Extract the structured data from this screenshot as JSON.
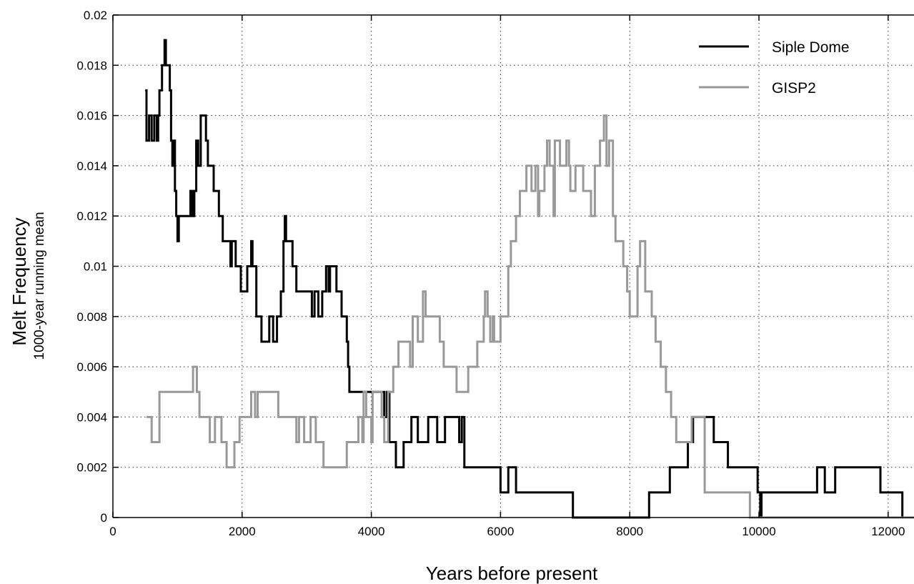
{
  "chart_data": {
    "type": "line",
    "xlabel": "Years before present",
    "ylabel": "Melt Frequency",
    "ylabel_sub": "1000-year running mean",
    "xlim": [
      0,
      12400
    ],
    "ylim": [
      0,
      0.02
    ],
    "x_ticks": [
      0,
      2000,
      4000,
      6000,
      8000,
      10000,
      12000
    ],
    "x_tick_labels": [
      "0",
      "2000",
      "4000",
      "6000",
      "8000",
      "10000",
      "12000"
    ],
    "y_ticks": [
      0,
      0.002,
      0.004,
      0.006,
      0.008,
      0.01,
      0.012,
      0.014,
      0.016,
      0.018,
      0.02
    ],
    "y_tick_labels": [
      "0",
      "0.002",
      "0.004",
      "0.006",
      "0.008",
      "0.01",
      "0.012",
      "0.014",
      "0.016",
      "0.018",
      "0.02"
    ],
    "grid": true,
    "legend_position": "top-right",
    "step": true,
    "series": [
      {
        "name": "Siple Dome",
        "color": "#000000",
        "points": [
          [
            500,
            0.017
          ],
          [
            520,
            0.015
          ],
          [
            560,
            0.016
          ],
          [
            600,
            0.015
          ],
          [
            640,
            0.016
          ],
          [
            680,
            0.015
          ],
          [
            700,
            0.016
          ],
          [
            720,
            0.017
          ],
          [
            760,
            0.018
          ],
          [
            800,
            0.019
          ],
          [
            820,
            0.018
          ],
          [
            860,
            0.018
          ],
          [
            880,
            0.017
          ],
          [
            900,
            0.015
          ],
          [
            920,
            0.014
          ],
          [
            940,
            0.015
          ],
          [
            960,
            0.013
          ],
          [
            980,
            0.012
          ],
          [
            1000,
            0.011
          ],
          [
            1020,
            0.012
          ],
          [
            1200,
            0.013
          ],
          [
            1230,
            0.012
          ],
          [
            1260,
            0.013
          ],
          [
            1290,
            0.015
          ],
          [
            1320,
            0.014
          ],
          [
            1360,
            0.016
          ],
          [
            1440,
            0.015
          ],
          [
            1470,
            0.014
          ],
          [
            1560,
            0.013
          ],
          [
            1640,
            0.012
          ],
          [
            1700,
            0.011
          ],
          [
            1820,
            0.01
          ],
          [
            1840,
            0.011
          ],
          [
            1900,
            0.01
          ],
          [
            1980,
            0.009
          ],
          [
            2080,
            0.01
          ],
          [
            2140,
            0.011
          ],
          [
            2160,
            0.01
          ],
          [
            2220,
            0.008
          ],
          [
            2300,
            0.007
          ],
          [
            2420,
            0.008
          ],
          [
            2480,
            0.007
          ],
          [
            2540,
            0.008
          ],
          [
            2600,
            0.009
          ],
          [
            2640,
            0.011
          ],
          [
            2660,
            0.012
          ],
          [
            2680,
            0.011
          ],
          [
            2780,
            0.01
          ],
          [
            2840,
            0.009
          ],
          [
            3080,
            0.008
          ],
          [
            3120,
            0.009
          ],
          [
            3180,
            0.008
          ],
          [
            3240,
            0.009
          ],
          [
            3300,
            0.01
          ],
          [
            3340,
            0.009
          ],
          [
            3360,
            0.01
          ],
          [
            3460,
            0.009
          ],
          [
            3540,
            0.008
          ],
          [
            3620,
            0.007
          ],
          [
            3640,
            0.006
          ],
          [
            3660,
            0.005
          ],
          [
            4200,
            0.004
          ],
          [
            4240,
            0.005
          ],
          [
            4280,
            0.003
          ],
          [
            4380,
            0.002
          ],
          [
            4500,
            0.003
          ],
          [
            4620,
            0.004
          ],
          [
            4720,
            0.003
          ],
          [
            4880,
            0.004
          ],
          [
            5020,
            0.003
          ],
          [
            5140,
            0.004
          ],
          [
            5360,
            0.003
          ],
          [
            5400,
            0.004
          ],
          [
            5440,
            0.002
          ],
          [
            6000,
            0.001
          ],
          [
            6120,
            0.002
          ],
          [
            6240,
            0.001
          ],
          [
            7120,
            0
          ],
          [
            8300,
            0.001
          ],
          [
            8620,
            0.002
          ],
          [
            8900,
            0.003
          ],
          [
            8980,
            0.004
          ],
          [
            9300,
            0.003
          ],
          [
            9520,
            0.002
          ],
          [
            9980,
            0.001
          ],
          [
            10020,
            0
          ],
          [
            10040,
            0.001
          ],
          [
            10900,
            0.002
          ],
          [
            11020,
            0.001
          ],
          [
            11180,
            0.002
          ],
          [
            11880,
            0.001
          ],
          [
            12220,
            0
          ],
          [
            12400,
            0
          ]
        ]
      },
      {
        "name": "GISP2",
        "color": "#999999",
        "points": [
          [
            520,
            0.004
          ],
          [
            600,
            0.003
          ],
          [
            720,
            0.005
          ],
          [
            1240,
            0.006
          ],
          [
            1300,
            0.005
          ],
          [
            1340,
            0.004
          ],
          [
            1500,
            0.003
          ],
          [
            1580,
            0.004
          ],
          [
            1680,
            0.003
          ],
          [
            1760,
            0.002
          ],
          [
            1880,
            0.003
          ],
          [
            1960,
            0.004
          ],
          [
            2140,
            0.005
          ],
          [
            2200,
            0.004
          ],
          [
            2240,
            0.005
          ],
          [
            2560,
            0.004
          ],
          [
            2840,
            0.003
          ],
          [
            2880,
            0.004
          ],
          [
            2960,
            0.003
          ],
          [
            3060,
            0.004
          ],
          [
            3140,
            0.003
          ],
          [
            3260,
            0.002
          ],
          [
            3620,
            0.003
          ],
          [
            3800,
            0.004
          ],
          [
            3860,
            0.003
          ],
          [
            3880,
            0.005
          ],
          [
            3920,
            0.004
          ],
          [
            4000,
            0.003
          ],
          [
            4020,
            0.005
          ],
          [
            4160,
            0.004
          ],
          [
            4200,
            0.003
          ],
          [
            4260,
            0.005
          ],
          [
            4340,
            0.006
          ],
          [
            4420,
            0.007
          ],
          [
            4600,
            0.006
          ],
          [
            4640,
            0.008
          ],
          [
            4720,
            0.007
          ],
          [
            4800,
            0.009
          ],
          [
            4840,
            0.008
          ],
          [
            5060,
            0.007
          ],
          [
            5120,
            0.006
          ],
          [
            5320,
            0.005
          ],
          [
            5500,
            0.006
          ],
          [
            5640,
            0.007
          ],
          [
            5740,
            0.008
          ],
          [
            5760,
            0.009
          ],
          [
            5800,
            0.008
          ],
          [
            5840,
            0.007
          ],
          [
            5880,
            0.008
          ],
          [
            5900,
            0.007
          ],
          [
            6000,
            0.008
          ],
          [
            6120,
            0.01
          ],
          [
            6160,
            0.011
          ],
          [
            6240,
            0.012
          ],
          [
            6300,
            0.013
          ],
          [
            6400,
            0.014
          ],
          [
            6480,
            0.013
          ],
          [
            6540,
            0.014
          ],
          [
            6580,
            0.012
          ],
          [
            6600,
            0.013
          ],
          [
            6680,
            0.014
          ],
          [
            6720,
            0.015
          ],
          [
            6760,
            0.014
          ],
          [
            6820,
            0.012
          ],
          [
            6840,
            0.015
          ],
          [
            6920,
            0.014
          ],
          [
            7020,
            0.015
          ],
          [
            7060,
            0.014
          ],
          [
            7080,
            0.013
          ],
          [
            7160,
            0.014
          ],
          [
            7280,
            0.013
          ],
          [
            7400,
            0.012
          ],
          [
            7460,
            0.014
          ],
          [
            7540,
            0.015
          ],
          [
            7600,
            0.016
          ],
          [
            7640,
            0.014
          ],
          [
            7680,
            0.015
          ],
          [
            7740,
            0.012
          ],
          [
            7780,
            0.011
          ],
          [
            7900,
            0.01
          ],
          [
            7960,
            0.009
          ],
          [
            8000,
            0.008
          ],
          [
            8120,
            0.01
          ],
          [
            8160,
            0.011
          ],
          [
            8240,
            0.009
          ],
          [
            8340,
            0.008
          ],
          [
            8400,
            0.007
          ],
          [
            8480,
            0.006
          ],
          [
            8560,
            0.005
          ],
          [
            8640,
            0.004
          ],
          [
            8720,
            0.003
          ],
          [
            8960,
            0.004
          ],
          [
            9160,
            0.001
          ],
          [
            9320,
            0.001
          ],
          [
            9860,
            0
          ],
          [
            12400,
            0
          ]
        ]
      }
    ]
  }
}
